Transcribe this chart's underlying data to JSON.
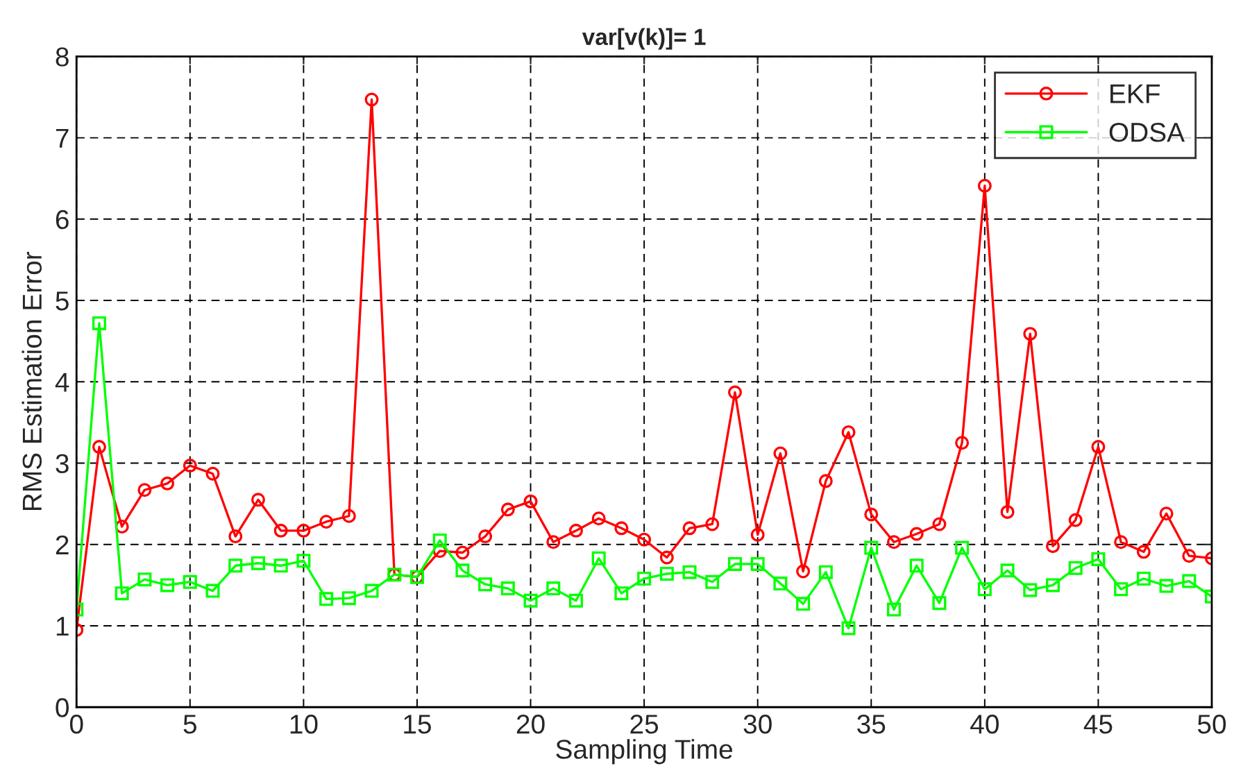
{
  "chart_data": {
    "type": "line",
    "title": "var[v(k)]= 1",
    "xlabel": "Sampling Time",
    "ylabel": "RMS Estimation Error",
    "x": [
      0,
      1,
      2,
      3,
      4,
      5,
      6,
      7,
      8,
      9,
      10,
      11,
      12,
      13,
      14,
      15,
      16,
      17,
      18,
      19,
      20,
      21,
      22,
      23,
      24,
      25,
      26,
      27,
      28,
      29,
      30,
      31,
      32,
      33,
      34,
      35,
      36,
      37,
      38,
      39,
      40,
      41,
      42,
      43,
      44,
      45,
      46,
      47,
      48,
      49,
      50
    ],
    "series": [
      {
        "name": "EKF",
        "color": "#ff0000",
        "marker": "circle",
        "values": [
          0.95,
          3.2,
          2.22,
          2.67,
          2.75,
          2.97,
          2.87,
          2.1,
          2.55,
          2.17,
          2.17,
          2.28,
          2.35,
          7.47,
          1.63,
          1.6,
          1.92,
          1.9,
          2.1,
          2.43,
          2.53,
          2.03,
          2.17,
          2.32,
          2.2,
          2.06,
          1.84,
          2.2,
          2.25,
          3.87,
          2.12,
          3.12,
          1.67,
          2.78,
          3.38,
          2.37,
          2.03,
          2.13,
          2.25,
          3.25,
          6.41,
          2.4,
          4.59,
          1.98,
          2.3,
          3.2,
          2.03,
          1.91,
          2.38,
          1.86,
          1.83
        ]
      },
      {
        "name": "ODSA",
        "color": "#00ff00",
        "marker": "square",
        "values": [
          1.2,
          4.72,
          1.4,
          1.57,
          1.5,
          1.54,
          1.43,
          1.74,
          1.77,
          1.74,
          1.8,
          1.33,
          1.34,
          1.43,
          1.63,
          1.6,
          2.05,
          1.68,
          1.51,
          1.46,
          1.31,
          1.46,
          1.31,
          1.83,
          1.4,
          1.58,
          1.64,
          1.66,
          1.54,
          1.76,
          1.76,
          1.52,
          1.27,
          1.66,
          0.97,
          1.96,
          1.2,
          1.74,
          1.28,
          1.96,
          1.45,
          1.68,
          1.44,
          1.5,
          1.71,
          1.82,
          1.45,
          1.58,
          1.49,
          1.55,
          1.36
        ]
      }
    ],
    "xlim": [
      0,
      50
    ],
    "xticks": [
      0,
      5,
      10,
      15,
      20,
      25,
      30,
      35,
      40,
      45,
      50
    ],
    "ylim": [
      0,
      8
    ],
    "yticks": [
      0,
      1,
      2,
      3,
      4,
      5,
      6,
      7,
      8
    ],
    "grid": true,
    "legend": "top right",
    "line_style": "solid"
  }
}
